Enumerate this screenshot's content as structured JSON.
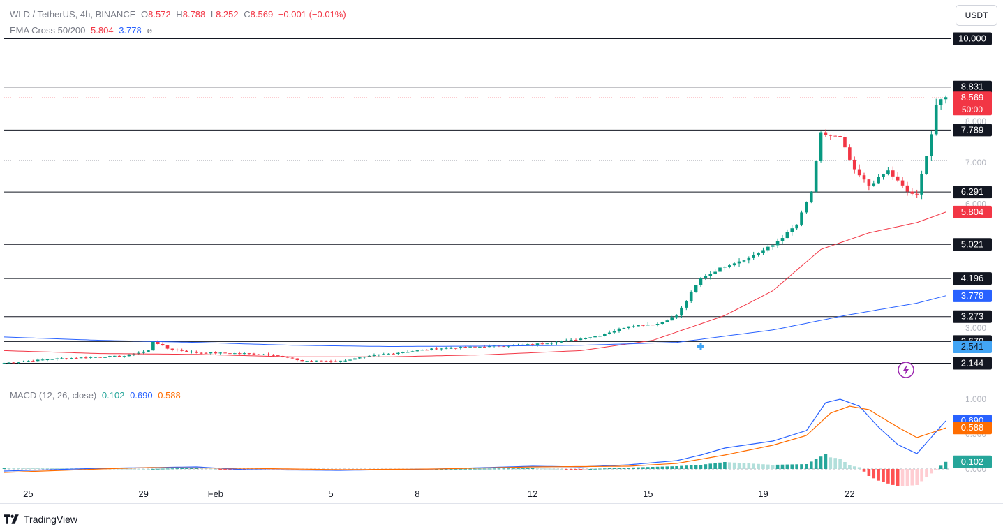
{
  "header": {
    "symbol": "WLD / TetherUS, 4h, BINANCE",
    "o_label": "O",
    "o_value": "8.572",
    "h_label": "H",
    "h_value": "8.788",
    "l_label": "L",
    "l_value": "8.252",
    "c_label": "C",
    "c_value": "8.569",
    "change": "−0.001 (−0.01%)"
  },
  "ema_legend": {
    "label": "EMA Cross 50/200",
    "fast": "5.804",
    "slow": "3.778",
    "extra": "ø"
  },
  "macd_legend": {
    "label": "MACD (12, 26, close)",
    "hist": "0.102",
    "macd": "0.690",
    "signal": "0.588"
  },
  "currency_button": "USDT",
  "footer_brand": "TradingView",
  "colors": {
    "up": "#089981",
    "down": "#f23645",
    "ema_fast": "#f23645",
    "ema_slow": "#2962ff",
    "macd_line": "#2962ff",
    "signal_line": "#ff6d00",
    "hist_up": "#26a69a",
    "hist_down": "#ff5252"
  },
  "chart_data": [
    {
      "type": "candlestick",
      "title": "WLD / TetherUS, 4h, BINANCE",
      "x_ticks": [
        "25",
        "29",
        "Feb",
        "5",
        "8",
        "12",
        "15",
        "19",
        "22"
      ],
      "x_tick_index": [
        5,
        29,
        44,
        68,
        86,
        110,
        134,
        158,
        176
      ],
      "y_ticks": [
        "3.000",
        "6.000",
        "7.000",
        "8.000",
        "10.000"
      ],
      "y_tick_values": [
        3.0,
        6.0,
        7.0,
        8.0,
        10.0
      ],
      "horizontal_lines": [
        10.0,
        8.831,
        7.789,
        6.291,
        5.021,
        4.196,
        3.273,
        2.67,
        2.144
      ],
      "price_labels": [
        {
          "text": "10.000",
          "value": 10.0,
          "style": "black"
        },
        {
          "text": "8.831",
          "value": 8.831,
          "style": "black"
        },
        {
          "text": "8.569",
          "value": 8.569,
          "style": "red",
          "sub": "50:00"
        },
        {
          "text": "7.789",
          "value": 7.789,
          "style": "black"
        },
        {
          "text": "6.291",
          "value": 6.291,
          "style": "black"
        },
        {
          "text": "5.804",
          "value": 5.804,
          "style": "red"
        },
        {
          "text": "5.021",
          "value": 5.021,
          "style": "black"
        },
        {
          "text": "4.196",
          "value": 4.196,
          "style": "black"
        },
        {
          "text": "3.778",
          "value": 3.778,
          "style": "blue"
        },
        {
          "text": "3.273",
          "value": 3.273,
          "style": "black"
        },
        {
          "text": "2.670",
          "value": 2.67,
          "style": "black"
        },
        {
          "text": "2.541",
          "value": 2.541,
          "style": "lightblue"
        },
        {
          "text": "2.144",
          "value": 2.144,
          "style": "black"
        }
      ],
      "current_price": 8.569,
      "close_anchors": [
        [
          0,
          2.15
        ],
        [
          10,
          2.25
        ],
        [
          20,
          2.3
        ],
        [
          25,
          2.32
        ],
        [
          30,
          2.45
        ],
        [
          31,
          2.68
        ],
        [
          34,
          2.5
        ],
        [
          40,
          2.4
        ],
        [
          50,
          2.38
        ],
        [
          56,
          2.35
        ],
        [
          62,
          2.2
        ],
        [
          70,
          2.2
        ],
        [
          78,
          2.35
        ],
        [
          90,
          2.5
        ],
        [
          100,
          2.55
        ],
        [
          110,
          2.6
        ],
        [
          118,
          2.7
        ],
        [
          124,
          2.82
        ],
        [
          130,
          3.05
        ],
        [
          136,
          3.1
        ],
        [
          140,
          3.3
        ],
        [
          145,
          4.2
        ],
        [
          150,
          4.5
        ],
        [
          155,
          4.7
        ],
        [
          160,
          5.0
        ],
        [
          165,
          5.5
        ],
        [
          168,
          6.3
        ],
        [
          170,
          7.7
        ],
        [
          174,
          7.6
        ],
        [
          177,
          6.8
        ],
        [
          180,
          6.45
        ],
        [
          184,
          6.8
        ],
        [
          188,
          6.3
        ],
        [
          190,
          6.2
        ],
        [
          193,
          7.7
        ],
        [
          194,
          8.4
        ],
        [
          196,
          8.569
        ]
      ],
      "ema_fast_anchors": [
        [
          0,
          2.45
        ],
        [
          20,
          2.38
        ],
        [
          40,
          2.36
        ],
        [
          60,
          2.3
        ],
        [
          80,
          2.3
        ],
        [
          100,
          2.35
        ],
        [
          120,
          2.45
        ],
        [
          135,
          2.7
        ],
        [
          150,
          3.3
        ],
        [
          160,
          3.9
        ],
        [
          165,
          4.4
        ],
        [
          170,
          4.9
        ],
        [
          180,
          5.3
        ],
        [
          190,
          5.55
        ],
        [
          196,
          5.804
        ]
      ],
      "ema_slow_anchors": [
        [
          0,
          2.78
        ],
        [
          20,
          2.7
        ],
        [
          40,
          2.65
        ],
        [
          60,
          2.58
        ],
        [
          80,
          2.55
        ],
        [
          100,
          2.56
        ],
        [
          120,
          2.58
        ],
        [
          140,
          2.65
        ],
        [
          160,
          2.95
        ],
        [
          175,
          3.3
        ],
        [
          190,
          3.6
        ],
        [
          196,
          3.778
        ]
      ],
      "ylim": [
        1.9,
        10.6
      ]
    },
    {
      "type": "macd",
      "title": "MACD (12, 26, close)",
      "y_ticks": [
        "0.000",
        "0.500",
        "1.000"
      ],
      "y_tick_values": [
        0.0,
        0.5,
        1.0
      ],
      "values_labels": [
        {
          "text": "0.690",
          "value": 0.69,
          "style": "blue"
        },
        {
          "text": "0.588",
          "value": 0.588,
          "style": "orange"
        },
        {
          "text": "0.102",
          "value": 0.102,
          "style": "teal"
        }
      ],
      "macd_anchors": [
        [
          0,
          -0.03
        ],
        [
          20,
          0.01
        ],
        [
          30,
          0.02
        ],
        [
          40,
          0.03
        ],
        [
          50,
          -0.01
        ],
        [
          70,
          -0.02
        ],
        [
          90,
          0.0
        ],
        [
          110,
          0.04
        ],
        [
          120,
          0.03
        ],
        [
          130,
          0.06
        ],
        [
          140,
          0.12
        ],
        [
          145,
          0.2
        ],
        [
          150,
          0.3
        ],
        [
          160,
          0.4
        ],
        [
          167,
          0.55
        ],
        [
          171,
          0.95
        ],
        [
          174,
          1.0
        ],
        [
          178,
          0.9
        ],
        [
          182,
          0.6
        ],
        [
          186,
          0.35
        ],
        [
          190,
          0.22
        ],
        [
          196,
          0.69
        ]
      ],
      "signal_anchors": [
        [
          0,
          -0.05
        ],
        [
          20,
          0.0
        ],
        [
          30,
          0.02
        ],
        [
          50,
          0.01
        ],
        [
          70,
          -0.01
        ],
        [
          90,
          0.0
        ],
        [
          110,
          0.03
        ],
        [
          130,
          0.04
        ],
        [
          140,
          0.08
        ],
        [
          150,
          0.2
        ],
        [
          160,
          0.34
        ],
        [
          167,
          0.48
        ],
        [
          172,
          0.8
        ],
        [
          176,
          0.9
        ],
        [
          180,
          0.85
        ],
        [
          186,
          0.6
        ],
        [
          190,
          0.45
        ],
        [
          196,
          0.588
        ]
      ],
      "ylim": [
        -0.18,
        1.1
      ]
    }
  ]
}
